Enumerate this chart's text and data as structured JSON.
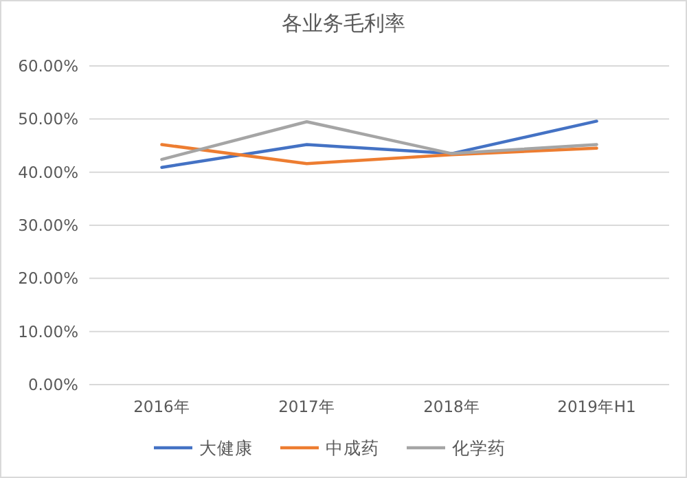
{
  "chart_data": {
    "type": "line",
    "title": "各业务毛利率",
    "categories": [
      "2016年",
      "2017年",
      "2018年",
      "2019年H1"
    ],
    "series": [
      {
        "name": "大健康",
        "color": "#4472c4",
        "values": [
          40.9,
          45.2,
          43.5,
          49.6
        ]
      },
      {
        "name": "中成药",
        "color": "#ed7d31",
        "values": [
          45.2,
          41.6,
          43.3,
          44.5
        ]
      },
      {
        "name": "化学药",
        "color": "#a5a5a5",
        "values": [
          42.4,
          49.5,
          43.5,
          45.2
        ]
      }
    ],
    "ylim": [
      0,
      60
    ],
    "yticks": [
      {
        "value": 0,
        "label": "0.00%"
      },
      {
        "value": 10,
        "label": "10.00%"
      },
      {
        "value": 20,
        "label": "20.00%"
      },
      {
        "value": 30,
        "label": "30.00%"
      },
      {
        "value": 40,
        "label": "40.00%"
      },
      {
        "value": 50,
        "label": "50.00%"
      },
      {
        "value": 60,
        "label": "60.00%"
      }
    ],
    "grid": "y",
    "legend": "bottom",
    "marker": "none",
    "line_style": "solid"
  }
}
